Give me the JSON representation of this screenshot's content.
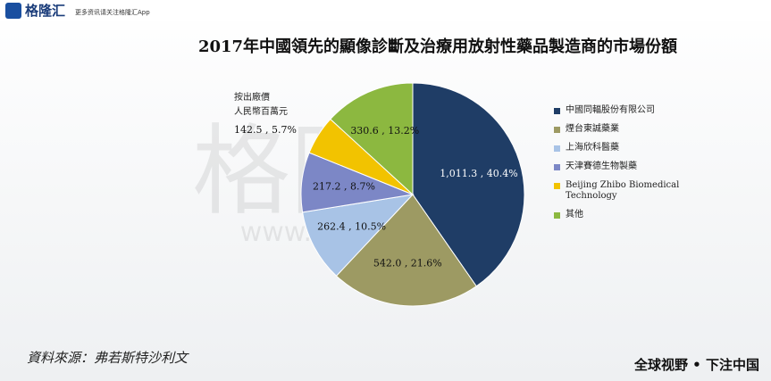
{
  "header": {
    "logo": "格隆汇",
    "tagline": "更多资讯请关注格隆汇App"
  },
  "watermark": {
    "brand": "格隆汇",
    "url": "www.gelonghui.com"
  },
  "chart_data": {
    "type": "pie",
    "title": "2017年中國領先的顯像診斷及治療用放射性藥品製造商的市場份額",
    "annotations": [
      "按出廠價",
      "人民幣百萬元"
    ],
    "categories": [
      "中國同輻股份有限公司",
      "煙台東誠藥業",
      "上海欣科醫藥",
      "天津賽德生物製藥",
      "Beijing Zhibo Biomedical Technology",
      "其他"
    ],
    "values": [
      1011.3,
      542.0,
      262.4,
      217.2,
      142.5,
      330.6
    ],
    "value_labels": [
      "1,011.3 , 40.4%",
      "542.0 , 21.6%",
      "262.4 , 10.5%",
      "217.2 , 8.7%",
      "142.5 , 5.7%",
      "330.6 , 13.2%"
    ],
    "colors": [
      "#1f3d66",
      "#9d9a63",
      "#a8c3e6",
      "#7c87c6",
      "#f2c300",
      "#8cb840"
    ],
    "legend": "right"
  },
  "source": "資料來源：弗若斯特沙利文",
  "footer": "全球视野 • 下注中国"
}
